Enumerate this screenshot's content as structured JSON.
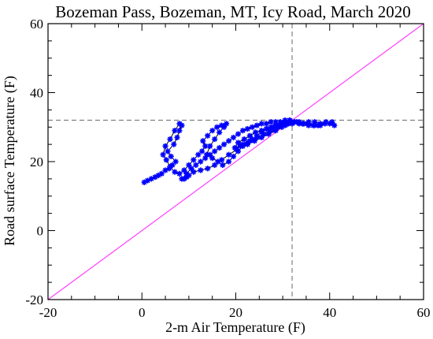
{
  "chart_data": {
    "type": "scatter",
    "title": "Bozeman Pass, Bozeman, MT, Icy Road, March 2020",
    "xlabel": "2-m Air Temperature (F)",
    "ylabel": "Road surface Temperature (F)",
    "xlim": [
      -20,
      60
    ],
    "ylim": [
      -20,
      60
    ],
    "xticks": [
      -20,
      0,
      20,
      40,
      60
    ],
    "yticks": [
      -20,
      0,
      20,
      40,
      60
    ],
    "xtick_labels": [
      "-20",
      "0",
      "20",
      "40",
      "60"
    ],
    "ytick_labels": [
      "-20",
      "0",
      "20",
      "40",
      "60"
    ],
    "reference_lines": [
      {
        "kind": "vertical",
        "value": 32,
        "style": "dashed",
        "color": "#808080"
      },
      {
        "kind": "horizontal",
        "value": 32,
        "style": "dashed",
        "color": "#808080"
      },
      {
        "kind": "diagonal",
        "equation": "y = x",
        "color": "#ff40ff"
      }
    ],
    "marker_color": "#0000ff",
    "connector_color": "#000000",
    "series": [
      {
        "x": [
          0.5,
          1.2,
          2.0,
          2.8,
          3.5,
          4.2,
          5.0,
          5.8,
          6.5,
          7.2,
          6.2,
          5.5,
          6.8,
          7.5,
          8.0,
          8.5,
          8.0,
          7.0,
          6.0,
          5.0,
          4.5,
          5.2,
          6.0,
          7.0,
          8.0,
          9.0,
          10.0,
          11.0,
          12.0,
          12.8,
          13.5,
          13.0,
          14.0,
          15.0,
          16.0,
          17.0,
          18.0,
          17.5,
          16.5,
          15.5,
          14.5,
          13.8,
          15.0,
          16.2,
          17.2,
          18.5,
          19.5,
          20.5,
          21.5,
          22.5,
          23.5,
          24.5,
          25.5,
          26.5,
          27.5,
          28.5,
          29.5,
          30.5,
          31.5,
          31.0,
          29.8,
          28.5,
          27.0,
          25.5,
          24.0,
          22.5,
          21.0,
          19.8,
          20.5,
          21.8,
          23.0,
          24.2,
          25.5,
          26.8,
          28.0,
          29.2,
          30.0,
          31.2,
          32.5,
          33.5,
          34.5,
          35.5,
          36.8,
          38.0,
          39.0,
          40.0,
          41.0,
          40.5,
          39.2,
          38.0,
          36.8,
          35.5,
          34.2,
          33.0,
          32.0,
          30.5,
          29.0,
          27.5,
          26.0,
          24.5,
          23.0,
          21.5,
          20.2,
          18.5,
          17.0,
          15.5,
          14.0,
          12.5,
          11.0,
          10.0,
          9.5,
          9.0,
          8.5,
          9.5,
          10.5,
          11.5,
          12.5,
          13.5,
          14.5,
          15.5,
          16.5,
          17.5,
          18.5,
          19.5,
          20.5,
          21.5,
          22.5,
          23.5,
          24.5,
          25.5,
          26.5,
          27.5,
          28.5,
          29.5,
          30.5,
          31.5,
          32.5,
          33.5,
          34.5,
          35.5,
          36.5,
          37.5
        ],
        "y": [
          14.0,
          14.5,
          15.0,
          15.5,
          16.0,
          16.5,
          17.5,
          18.0,
          19.0,
          20.0,
          21.5,
          23.0,
          25.0,
          27.0,
          29.0,
          30.5,
          31.0,
          29.0,
          26.5,
          24.5,
          22.0,
          20.5,
          18.5,
          17.0,
          16.5,
          17.5,
          19.0,
          20.5,
          22.0,
          23.0,
          24.5,
          26.0,
          27.5,
          29.0,
          30.0,
          30.5,
          31.0,
          30.0,
          28.5,
          26.5,
          24.5,
          22.0,
          21.0,
          20.0,
          19.0,
          20.0,
          21.5,
          23.0,
          24.5,
          25.5,
          26.5,
          27.5,
          28.5,
          29.5,
          30.0,
          30.5,
          31.0,
          31.5,
          32.0,
          31.0,
          30.0,
          29.0,
          28.0,
          27.0,
          26.0,
          25.0,
          24.5,
          24.0,
          25.5,
          26.5,
          27.5,
          28.5,
          29.0,
          29.5,
          30.0,
          30.5,
          31.0,
          31.0,
          31.5,
          31.0,
          31.0,
          30.5,
          30.5,
          30.5,
          31.0,
          31.0,
          30.5,
          31.5,
          31.5,
          31.0,
          31.5,
          31.5,
          31.0,
          31.5,
          31.0,
          30.5,
          30.0,
          29.0,
          28.0,
          27.0,
          26.0,
          25.0,
          23.5,
          22.0,
          20.5,
          19.0,
          18.0,
          17.5,
          17.0,
          16.0,
          15.5,
          15.0,
          15.0,
          16.5,
          18.0,
          19.0,
          20.0,
          21.0,
          22.0,
          23.0,
          24.0,
          25.0,
          26.0,
          27.0,
          28.0,
          29.0,
          29.5,
          30.0,
          30.5,
          31.0,
          31.0,
          31.5,
          31.5,
          31.5,
          32.0,
          32.0,
          31.5,
          31.5,
          31.0,
          31.0,
          30.5,
          30.5
        ]
      }
    ]
  }
}
